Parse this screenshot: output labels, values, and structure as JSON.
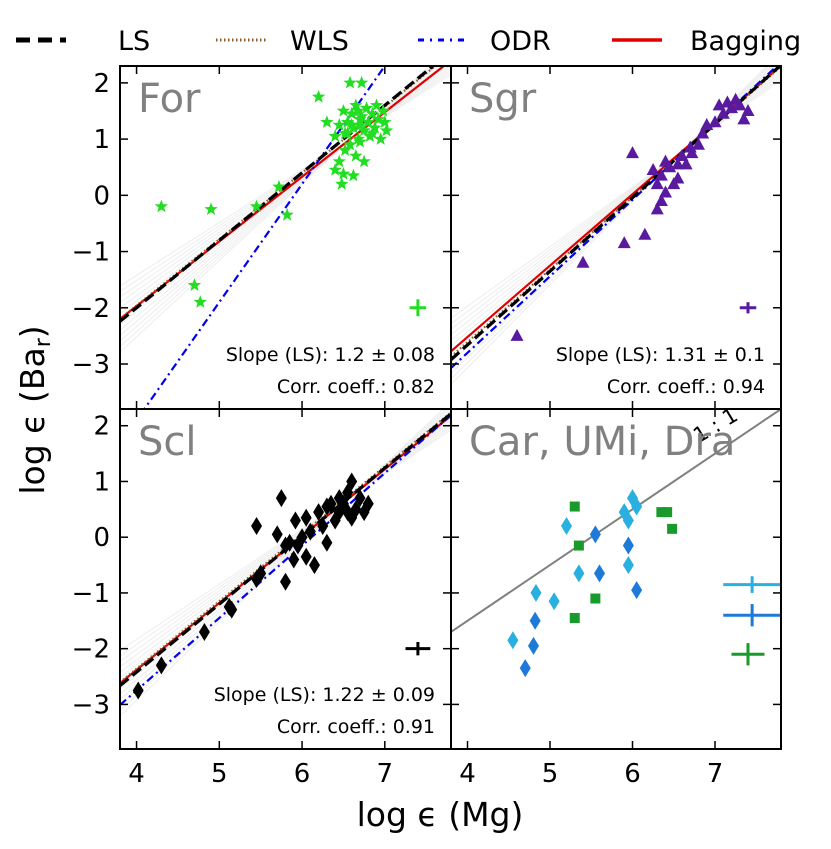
{
  "chart_data": {
    "type": "scatter",
    "xlabel": "log ϵ (Mg)",
    "ylabel": "log ϵ (Ba",
    "ylabel_sub": "r",
    "ylabel_close": ")",
    "xlim": [
      3.8,
      7.8
    ],
    "ylim": [
      -3.8,
      2.3
    ],
    "xticks": [
      4,
      5,
      6,
      7
    ],
    "yticks": [
      -3,
      -2,
      -1,
      0,
      1,
      2
    ],
    "legend": {
      "position": "top",
      "entries": [
        {
          "label": "LS",
          "style": "dashed",
          "color": "#000000"
        },
        {
          "label": "WLS",
          "style": "dotted",
          "color": "#8b5a2b"
        },
        {
          "label": "ODR",
          "style": "dashdot",
          "color": "#0000ee"
        },
        {
          "label": "Bagging",
          "style": "solid",
          "color": "#e00000"
        }
      ]
    },
    "panels": [
      {
        "title": "For",
        "marker": "star",
        "color": "#22dd22",
        "points": [
          [
            4.3,
            -0.2
          ],
          [
            4.7,
            -1.6
          ],
          [
            4.77,
            -1.9
          ],
          [
            4.9,
            -0.25
          ],
          [
            5.45,
            -0.2
          ],
          [
            5.72,
            0.15
          ],
          [
            5.82,
            -0.35
          ],
          [
            6.2,
            1.75
          ],
          [
            6.3,
            1.3
          ],
          [
            6.4,
            1.05
          ],
          [
            6.4,
            0.45
          ],
          [
            6.45,
            0.6
          ],
          [
            6.48,
            0.2
          ],
          [
            6.5,
            0.38
          ],
          [
            6.5,
            1.5
          ],
          [
            6.52,
            0.8
          ],
          [
            6.55,
            1.1
          ],
          [
            6.55,
            1.3
          ],
          [
            6.58,
            0.9
          ],
          [
            6.6,
            1.45
          ],
          [
            6.62,
            1.2
          ],
          [
            6.65,
            0.7
          ],
          [
            6.65,
            1.6
          ],
          [
            6.68,
            1.0
          ],
          [
            6.7,
            1.25
          ],
          [
            6.7,
            0.95
          ],
          [
            6.72,
            1.4
          ],
          [
            6.75,
            1.15
          ],
          [
            6.78,
            1.55
          ],
          [
            6.8,
            1.3
          ],
          [
            6.82,
            1.05
          ],
          [
            6.85,
            1.45
          ],
          [
            6.88,
            1.2
          ],
          [
            6.9,
            1.6
          ],
          [
            6.92,
            1.35
          ],
          [
            6.95,
            1.0
          ],
          [
            6.98,
            1.5
          ],
          [
            7.0,
            1.3
          ],
          [
            7.02,
            1.15
          ],
          [
            6.58,
            2.0
          ],
          [
            6.72,
            2.0
          ],
          [
            6.6,
            1.25
          ],
          [
            6.68,
            1.5
          ],
          [
            6.75,
            0.6
          ],
          [
            6.62,
            0.35
          ],
          [
            6.7,
            1.35
          ],
          [
            6.85,
            1.1
          ],
          [
            6.52,
            1.1
          ],
          [
            6.45,
            1.25
          ]
        ],
        "error_bar": {
          "x": 7.4,
          "y": -2.0,
          "dx": 0.1,
          "dy": 0.15
        },
        "fits": {
          "ls": [
            1.2,
            -6.8
          ],
          "wls": [
            1.18,
            -6.68
          ],
          "odr": [
            2.1,
            -12.4
          ],
          "bagging": [
            1.15,
            -6.57
          ]
        },
        "slope_label": "Slope (LS): 1.2 ± 0.08",
        "corr_label": "Corr. coeff.: 0.82"
      },
      {
        "title": "Sgr",
        "marker": "triangle",
        "color": "#5a1aa0",
        "points": [
          [
            4.6,
            -2.5
          ],
          [
            5.4,
            -1.2
          ],
          [
            5.9,
            -0.85
          ],
          [
            6.0,
            0.75
          ],
          [
            6.15,
            -0.7
          ],
          [
            6.25,
            0.45
          ],
          [
            6.3,
            0.2
          ],
          [
            6.35,
            0.35
          ],
          [
            6.35,
            -0.1
          ],
          [
            6.4,
            0.6
          ],
          [
            6.4,
            0.05
          ],
          [
            6.45,
            0.5
          ],
          [
            6.5,
            0.2
          ],
          [
            6.55,
            0.55
          ],
          [
            6.6,
            0.7
          ],
          [
            6.65,
            0.55
          ],
          [
            6.7,
            0.85
          ],
          [
            6.72,
            0.75
          ],
          [
            6.8,
            0.9
          ],
          [
            6.85,
            1.1
          ],
          [
            6.9,
            1.25
          ],
          [
            7.0,
            1.3
          ],
          [
            7.05,
            1.6
          ],
          [
            7.1,
            1.45
          ],
          [
            7.15,
            1.65
          ],
          [
            7.2,
            1.55
          ],
          [
            7.25,
            1.7
          ],
          [
            7.3,
            1.6
          ],
          [
            7.35,
            1.35
          ],
          [
            7.4,
            1.5
          ],
          [
            6.3,
            -0.25
          ],
          [
            6.55,
            0.3
          ]
        ],
        "error_bar": {
          "x": 7.4,
          "y": -2.0,
          "dx": 0.1,
          "dy": 0.1
        },
        "fits": {
          "ls": [
            1.31,
            -7.9
          ],
          "wls": [
            1.29,
            -7.77
          ],
          "odr": [
            1.36,
            -8.24
          ],
          "bagging": [
            1.27,
            -7.6
          ]
        },
        "slope_label": "Slope (LS): 1.31 ± 0.1",
        "corr_label": "Corr. coeff.: 0.94"
      },
      {
        "title": "Scl",
        "marker": "diamond",
        "color": "#000000",
        "points": [
          [
            4.02,
            -2.75
          ],
          [
            4.3,
            -2.3
          ],
          [
            4.82,
            -1.7
          ],
          [
            5.12,
            -1.25
          ],
          [
            5.15,
            -1.3
          ],
          [
            5.45,
            -0.75
          ],
          [
            5.5,
            -0.65
          ],
          [
            5.45,
            0.2
          ],
          [
            5.7,
            0.05
          ],
          [
            5.75,
            0.7
          ],
          [
            5.8,
            -0.15
          ],
          [
            5.8,
            -0.8
          ],
          [
            5.85,
            -0.1
          ],
          [
            5.9,
            -0.4
          ],
          [
            5.92,
            0.3
          ],
          [
            5.95,
            -0.15
          ],
          [
            6.0,
            0.0
          ],
          [
            6.05,
            -0.35
          ],
          [
            6.05,
            0.35
          ],
          [
            6.1,
            0.1
          ],
          [
            6.15,
            -0.5
          ],
          [
            6.2,
            0.45
          ],
          [
            6.25,
            0.2
          ],
          [
            6.3,
            0.55
          ],
          [
            6.3,
            -0.1
          ],
          [
            6.35,
            0.6
          ],
          [
            6.4,
            0.3
          ],
          [
            6.45,
            0.45
          ],
          [
            6.5,
            0.6
          ],
          [
            6.55,
            0.8
          ],
          [
            6.6,
            1.0
          ],
          [
            6.6,
            0.35
          ],
          [
            6.65,
            0.5
          ],
          [
            6.7,
            0.7
          ],
          [
            6.75,
            0.45
          ],
          [
            6.8,
            0.6
          ],
          [
            6.55,
            0.45
          ],
          [
            6.45,
            0.7
          ]
        ],
        "error_bar": {
          "x": 7.4,
          "y": -2.0,
          "dx": 0.15,
          "dy": 0.12
        },
        "fits": {
          "ls": [
            1.22,
            -7.3
          ],
          "wls": [
            1.21,
            -7.2
          ],
          "odr": [
            1.3,
            -7.95
          ],
          "bagging": [
            1.2,
            -7.18
          ]
        },
        "slope_label": "Slope (LS): 1.22 ± 0.09",
        "corr_label": "Corr. coeff.: 0.91"
      },
      {
        "title": "Car, UMi, Dra",
        "line_label": "1 : 1",
        "line_11": {
          "slope": 1,
          "intercept": -5.5
        },
        "groups": [
          {
            "name": "Car",
            "marker": "diamond",
            "color": "#2ab0e0",
            "points": [
              [
                4.55,
                -1.85
              ],
              [
                4.83,
                -1.0
              ],
              [
                5.05,
                -1.15
              ],
              [
                5.2,
                0.2
              ],
              [
                5.35,
                -0.65
              ],
              [
                5.9,
                0.45
              ],
              [
                5.95,
                0.3
              ],
              [
                6.0,
                0.7
              ],
              [
                6.05,
                0.55
              ],
              [
                5.95,
                -0.5
              ]
            ]
          },
          {
            "name": "UMi",
            "marker": "diamond",
            "color": "#1e7ad8",
            "points": [
              [
                4.7,
                -2.35
              ],
              [
                4.8,
                -1.95
              ],
              [
                4.82,
                -1.5
              ],
              [
                5.55,
                0.05
              ],
              [
                5.6,
                -0.65
              ],
              [
                5.95,
                -0.15
              ],
              [
                6.05,
                -0.95
              ]
            ]
          },
          {
            "name": "Dra",
            "marker": "square",
            "color": "#1a9a2a",
            "points": [
              [
                5.3,
                0.55
              ],
              [
                5.35,
                -0.15
              ],
              [
                5.3,
                -1.45
              ],
              [
                5.55,
                -1.1
              ],
              [
                6.35,
                0.45
              ],
              [
                6.42,
                0.45
              ],
              [
                6.48,
                0.15
              ]
            ]
          }
        ],
        "error_bars": [
          {
            "x": 7.45,
            "y": -0.85,
            "dx": 0.35,
            "dy": 0.15,
            "color": "#2ab0e0"
          },
          {
            "x": 7.45,
            "y": -1.4,
            "dx": 0.35,
            "dy": 0.2,
            "color": "#1e7ad8"
          },
          {
            "x": 7.4,
            "y": -2.1,
            "dx": 0.2,
            "dy": 0.2,
            "color": "#1a9a2a"
          }
        ]
      }
    ]
  }
}
